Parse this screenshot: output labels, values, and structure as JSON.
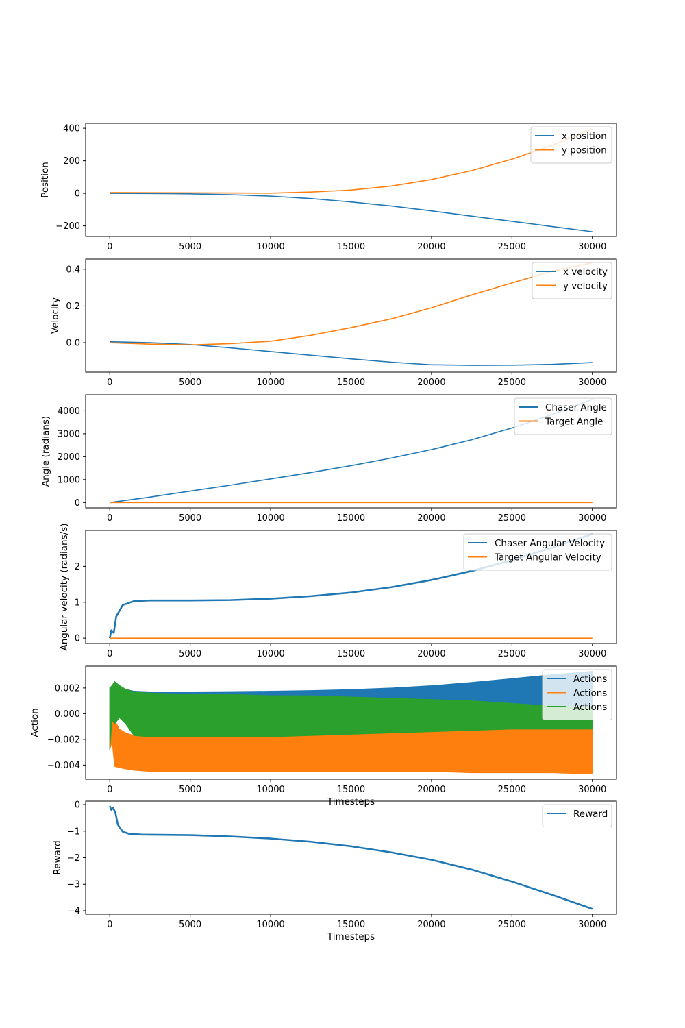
{
  "chart_data": [
    {
      "type": "line",
      "ylabel": "Position",
      "xlabel": "",
      "xlim": [
        -1500,
        31500
      ],
      "ylim": [
        -265,
        430
      ],
      "xticks": [
        0,
        5000,
        10000,
        15000,
        20000,
        25000,
        30000
      ],
      "yticks": [
        400,
        200,
        0,
        -200
      ],
      "ytick_labels": [
        "400",
        "200",
        "0",
        "−200"
      ],
      "legend_position": "top-right",
      "x": [
        0,
        2500,
        5000,
        7500,
        10000,
        12500,
        15000,
        17500,
        20000,
        22500,
        25000,
        27500,
        30000
      ],
      "series": [
        {
          "name": "x position",
          "color": "#1f77b4",
          "values": [
            0,
            -1,
            -3,
            -8,
            -17,
            -32,
            -53,
            -78,
            -108,
            -140,
            -172,
            -204,
            -236
          ]
        },
        {
          "name": "y position",
          "color": "#ff7f0e",
          "values": [
            5,
            4,
            3,
            2,
            1,
            8,
            20,
            45,
            85,
            140,
            210,
            295,
            395
          ]
        }
      ]
    },
    {
      "type": "line",
      "ylabel": "Velocity",
      "xlabel": "",
      "xlim": [
        -1500,
        31500
      ],
      "ylim": [
        -0.16,
        0.455
      ],
      "xticks": [
        0,
        5000,
        10000,
        15000,
        20000,
        25000,
        30000
      ],
      "yticks": [
        0.4,
        0.2,
        0.0
      ],
      "ytick_labels": [
        "0.4",
        "0.2",
        "0.0"
      ],
      "legend_position": "top-right",
      "x": [
        0,
        2500,
        5000,
        7500,
        10000,
        12500,
        15000,
        17500,
        20000,
        22500,
        25000,
        27500,
        30000
      ],
      "series": [
        {
          "name": "x velocity",
          "color": "#1f77b4",
          "values": [
            0.005,
            0.0,
            -0.01,
            -0.028,
            -0.048,
            -0.068,
            -0.088,
            -0.106,
            -0.12,
            -0.123,
            -0.122,
            -0.118,
            -0.108
          ]
        },
        {
          "name": "y velocity",
          "color": "#ff7f0e",
          "values": [
            0.0,
            -0.008,
            -0.012,
            -0.005,
            0.008,
            0.04,
            0.082,
            0.13,
            0.19,
            0.26,
            0.325,
            0.39,
            0.435
          ]
        }
      ]
    },
    {
      "type": "line",
      "ylabel": "Angle (radians)",
      "xlabel": "",
      "xlim": [
        -1500,
        31500
      ],
      "ylim": [
        -230,
        4700
      ],
      "xticks": [
        0,
        5000,
        10000,
        15000,
        20000,
        25000,
        30000
      ],
      "yticks": [
        4000,
        3000,
        2000,
        1000,
        0
      ],
      "ytick_labels": [
        "4000",
        "3000",
        "2000",
        "1000",
        "0"
      ],
      "legend_position": "top-right",
      "x": [
        0,
        2500,
        5000,
        7500,
        10000,
        12500,
        15000,
        17500,
        20000,
        22500,
        25000,
        27500,
        30000
      ],
      "series": [
        {
          "name": "Chaser Angle",
          "color": "#1f77b4",
          "values": [
            0,
            240,
            500,
            760,
            1030,
            1310,
            1610,
            1940,
            2310,
            2740,
            3250,
            3840,
            4500
          ]
        },
        {
          "name": "Target Angle",
          "color": "#ff7f0e",
          "values": [
            0,
            0,
            0,
            0,
            0,
            0,
            0,
            0,
            0,
            0,
            0,
            0,
            0
          ]
        }
      ]
    },
    {
      "type": "line",
      "ylabel": "Angular velocity (radians/s)",
      "xlabel": "",
      "xlim": [
        -1500,
        31500
      ],
      "ylim": [
        -0.15,
        3.0
      ],
      "xticks": [
        0,
        5000,
        10000,
        15000,
        20000,
        25000,
        30000
      ],
      "yticks": [
        2,
        1,
        0
      ],
      "ytick_labels": [
        "2",
        "1",
        "0"
      ],
      "legend_position": "top-right",
      "x": [
        0,
        100,
        250,
        400,
        800,
        1500,
        2500,
        5000,
        7500,
        10000,
        12500,
        15000,
        17500,
        20000,
        22500,
        25000,
        27500,
        30000
      ],
      "series": [
        {
          "name": "Chaser Angular Velocity",
          "color": "#1f77b4",
          "values": [
            0,
            0.22,
            0.15,
            0.6,
            0.92,
            1.03,
            1.05,
            1.05,
            1.06,
            1.1,
            1.17,
            1.27,
            1.42,
            1.62,
            1.87,
            2.17,
            2.52,
            2.9
          ]
        },
        {
          "name": "Target Angular Velocity",
          "color": "#ff7f0e",
          "values": [
            0,
            0,
            0,
            0,
            0,
            0,
            0,
            0,
            0,
            0,
            0,
            0,
            0,
            0,
            0,
            0,
            0,
            0
          ]
        }
      ]
    },
    {
      "type": "area",
      "ylabel": "Action",
      "xlabel": "Timesteps",
      "xlim": [
        -1500,
        31500
      ],
      "ylim": [
        -0.0051,
        0.0037
      ],
      "xticks": [
        0,
        5000,
        10000,
        15000,
        20000,
        25000,
        30000
      ],
      "yticks": [
        0.002,
        0.0,
        -0.002,
        -0.004
      ],
      "ytick_labels": [
        "0.002",
        "0.000",
        "−0.002",
        "−0.004"
      ],
      "legend_position": "top-right",
      "x": [
        0,
        150,
        300,
        600,
        1000,
        1500,
        2500,
        5000,
        7500,
        10000,
        12500,
        15000,
        17500,
        20000,
        22500,
        25000,
        27500,
        30000
      ],
      "series": [
        {
          "name": "Actions",
          "color": "#1f77b4",
          "upper": [
            0.002,
            0.0022,
            0.0023,
            0.0021,
            0.0019,
            0.00175,
            0.0017,
            0.0017,
            0.00172,
            0.00175,
            0.0018,
            0.00188,
            0.002,
            0.00218,
            0.00243,
            0.00273,
            0.00303,
            0.0033
          ],
          "lower": [
            -0.0028,
            -0.0005,
            -0.0008,
            -0.0003,
            -0.0008,
            -0.0017,
            -0.0018,
            -0.0018,
            -0.0018,
            -0.0018,
            -0.0017,
            -0.0016,
            -0.0015,
            -0.0014,
            -0.0013,
            -0.0012,
            -0.0012,
            -0.0012
          ]
        },
        {
          "name": "Actions",
          "color": "#ff7f0e",
          "upper": [
            0.0008,
            0.0002,
            -0.0005,
            -0.0012,
            -0.0015,
            -0.0017,
            -0.0018,
            -0.0018,
            -0.0018,
            -0.0018,
            -0.0017,
            -0.0016,
            -0.0015,
            -0.0014,
            -0.0013,
            -0.0012,
            -0.0012,
            -0.0012
          ],
          "lower": [
            -0.0028,
            -0.0022,
            -0.0041,
            -0.0042,
            -0.0043,
            -0.0044,
            -0.0045,
            -0.0045,
            -0.0045,
            -0.0045,
            -0.0045,
            -0.0045,
            -0.0045,
            -0.0045,
            -0.0046,
            -0.0046,
            -0.0046,
            -0.0047
          ]
        },
        {
          "name": "Actions",
          "color": "#2ca02c",
          "upper": [
            0.002,
            0.0022,
            0.0025,
            0.0022,
            0.0019,
            0.0017,
            0.0016,
            0.0015,
            0.0015,
            0.0014,
            0.0014,
            0.0013,
            0.0012,
            0.0011,
            0.001,
            0.0008,
            0.0006,
            0.0005
          ],
          "lower": [
            -0.0028,
            -0.0005,
            -0.0008,
            -0.0003,
            -0.0008,
            -0.0017,
            -0.0018,
            -0.0018,
            -0.0018,
            -0.0018,
            -0.0017,
            -0.0016,
            -0.0015,
            -0.0014,
            -0.0013,
            -0.0012,
            -0.0012,
            -0.0012
          ]
        }
      ]
    },
    {
      "type": "line",
      "ylabel": "Reward",
      "xlabel": "Timesteps",
      "xlim": [
        -1500,
        31500
      ],
      "ylim": [
        -4.13,
        0.13
      ],
      "xticks": [
        0,
        5000,
        10000,
        15000,
        20000,
        25000,
        30000
      ],
      "yticks": [
        0,
        -1,
        -2,
        -3,
        -4
      ],
      "ytick_labels": [
        "0",
        "−1",
        "−2",
        "−3",
        "−4"
      ],
      "legend_position": "top-right",
      "x": [
        0,
        100,
        200,
        350,
        500,
        800,
        1200,
        2000,
        5000,
        7500,
        10000,
        12500,
        15000,
        17500,
        20000,
        22500,
        25000,
        27500,
        30000
      ],
      "series": [
        {
          "name": "Reward",
          "color": "#1f77b4",
          "values": [
            -0.05,
            -0.2,
            -0.12,
            -0.3,
            -0.75,
            -1.02,
            -1.1,
            -1.13,
            -1.15,
            -1.2,
            -1.28,
            -1.4,
            -1.57,
            -1.8,
            -2.08,
            -2.45,
            -2.9,
            -3.4,
            -3.93
          ]
        }
      ]
    }
  ]
}
